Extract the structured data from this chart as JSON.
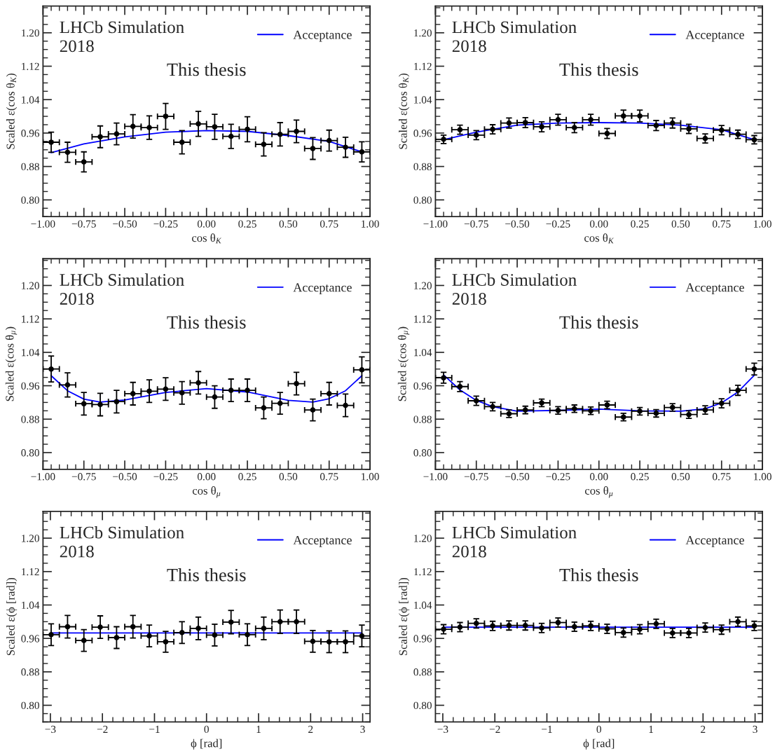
{
  "chart_data": [
    {
      "type": "scatter",
      "xlabel": "cos θ$_{K}$",
      "ylabel": "Scaled ε(cos θ$_{K}$)",
      "annotations": [
        "LHCb Simulation\n2018",
        "This thesis"
      ],
      "legend": "top right",
      "xlim": [
        -1,
        1
      ],
      "ylim": [
        0.76,
        1.264
      ],
      "xticks": [
        {
          "value": -1,
          "label": "−1.00"
        },
        {
          "value": -0.75,
          "label": "−0.75"
        },
        {
          "value": -0.5,
          "label": "−0.50"
        },
        {
          "value": -0.25,
          "label": "−0.25"
        },
        {
          "value": 0,
          "label": "0.00"
        },
        {
          "value": 0.25,
          "label": "0.25"
        },
        {
          "value": 0.5,
          "label": "0.50"
        },
        {
          "value": 0.75,
          "label": "0.75"
        },
        {
          "value": 1,
          "label": "1.00"
        }
      ],
      "yticks": [
        {
          "value": 0.8,
          "label": "0.80"
        },
        {
          "value": 0.88,
          "label": "0.88"
        },
        {
          "value": 0.96,
          "label": "0.96"
        },
        {
          "value": 1.04,
          "label": "1.04"
        },
        {
          "value": 1.12,
          "label": "1.12"
        },
        {
          "value": 1.2,
          "label": "1.20"
        }
      ],
      "series": [
        {
          "type": "scatter",
          "color": "#000000",
          "marker": "circle",
          "x": [
            -0.95,
            -0.85,
            -0.75,
            -0.65,
            -0.55,
            -0.45,
            -0.35,
            -0.25,
            -0.15,
            -0.05,
            0.05,
            0.15,
            0.25,
            0.35,
            0.45,
            0.55,
            0.65,
            0.75,
            0.85,
            0.95
          ],
          "values": [
            0.938,
            0.914,
            0.891,
            0.951,
            0.958,
            0.976,
            0.973,
            1.0,
            0.938,
            0.982,
            0.975,
            0.952,
            0.969,
            0.933,
            0.957,
            0.964,
            0.923,
            0.942,
            0.926,
            0.915
          ],
          "errors": [
            0.024,
            0.024,
            0.024,
            0.026,
            0.026,
            0.028,
            0.028,
            0.031,
            0.028,
            0.03,
            0.03,
            0.029,
            0.03,
            0.028,
            0.028,
            0.027,
            0.026,
            0.025,
            0.024,
            0.024
          ],
          "xerrors": [
            0.05,
            0.05,
            0.05,
            0.05,
            0.05,
            0.05,
            0.05,
            0.05,
            0.05,
            0.05,
            0.05,
            0.05,
            0.05,
            0.05,
            0.05,
            0.05,
            0.05,
            0.05,
            0.05,
            0.05
          ]
        },
        {
          "type": "line",
          "name": "Acceptance",
          "color": "#0000ff",
          "x": [
            -0.95,
            -0.75,
            -0.5,
            -0.25,
            0,
            0.25,
            0.5,
            0.75,
            0.95
          ],
          "values": [
            0.913,
            0.934,
            0.951,
            0.962,
            0.966,
            0.964,
            0.954,
            0.94,
            0.915
          ]
        }
      ]
    },
    {
      "type": "scatter",
      "xlabel": "cos θ$_{K}$",
      "ylabel": "Scaled ε(cos θ$_{K}$)",
      "annotations": [
        "LHCb Simulation\n2018",
        "This thesis"
      ],
      "legend": "top right",
      "xlim": [
        -1,
        1
      ],
      "ylim": [
        0.76,
        1.264
      ],
      "xticks": [
        {
          "value": -1,
          "label": "−1.00"
        },
        {
          "value": -0.75,
          "label": "−0.75"
        },
        {
          "value": -0.5,
          "label": "−0.50"
        },
        {
          "value": -0.25,
          "label": "−0.25"
        },
        {
          "value": 0,
          "label": "0.00"
        },
        {
          "value": 0.25,
          "label": "0.25"
        },
        {
          "value": 0.5,
          "label": "0.50"
        },
        {
          "value": 0.75,
          "label": "0.75"
        },
        {
          "value": 1,
          "label": "1.00"
        }
      ],
      "yticks": [
        {
          "value": 0.8,
          "label": "0.80"
        },
        {
          "value": 0.88,
          "label": "0.88"
        },
        {
          "value": 0.96,
          "label": "0.96"
        },
        {
          "value": 1.04,
          "label": "1.04"
        },
        {
          "value": 1.12,
          "label": "1.12"
        },
        {
          "value": 1.2,
          "label": "1.20"
        }
      ],
      "series": [
        {
          "type": "scatter",
          "color": "#000000",
          "marker": "circle",
          "x": [
            -0.95,
            -0.85,
            -0.75,
            -0.65,
            -0.55,
            -0.45,
            -0.35,
            -0.25,
            -0.15,
            -0.05,
            0.05,
            0.15,
            0.25,
            0.35,
            0.45,
            0.55,
            0.65,
            0.75,
            0.85,
            0.95
          ],
          "values": [
            0.945,
            0.968,
            0.955,
            0.969,
            0.984,
            0.985,
            0.975,
            0.992,
            0.973,
            0.992,
            0.959,
            1.001,
            1.001,
            0.978,
            0.984,
            0.97,
            0.947,
            0.967,
            0.957,
            0.944
          ],
          "errors": [
            0.01,
            0.011,
            0.011,
            0.011,
            0.012,
            0.012,
            0.012,
            0.013,
            0.012,
            0.013,
            0.012,
            0.014,
            0.014,
            0.012,
            0.012,
            0.011,
            0.011,
            0.011,
            0.01,
            0.01
          ],
          "xerrors": [
            0.05,
            0.05,
            0.05,
            0.05,
            0.05,
            0.05,
            0.05,
            0.05,
            0.05,
            0.05,
            0.05,
            0.05,
            0.05,
            0.05,
            0.05,
            0.05,
            0.05,
            0.05,
            0.05,
            0.05
          ]
        },
        {
          "type": "line",
          "name": "Acceptance",
          "color": "#0000ff",
          "x": [
            -0.95,
            -0.75,
            -0.5,
            -0.25,
            0,
            0.25,
            0.5,
            0.75,
            0.95
          ],
          "values": [
            0.944,
            0.962,
            0.979,
            0.984,
            0.985,
            0.984,
            0.979,
            0.968,
            0.944
          ]
        }
      ]
    },
    {
      "type": "scatter",
      "xlabel": "cos θ$_{μ}$",
      "ylabel": "Scaled ε(cos θ$_{μ}$)",
      "annotations": [
        "LHCb Simulation\n2018",
        "This thesis"
      ],
      "legend": "top right",
      "xlim": [
        -1,
        1
      ],
      "ylim": [
        0.76,
        1.264
      ],
      "xticks": [
        {
          "value": -1,
          "label": "−1.00"
        },
        {
          "value": -0.75,
          "label": "−0.75"
        },
        {
          "value": -0.5,
          "label": "−0.50"
        },
        {
          "value": -0.25,
          "label": "−0.25"
        },
        {
          "value": 0,
          "label": "0.00"
        },
        {
          "value": 0.25,
          "label": "0.25"
        },
        {
          "value": 0.5,
          "label": "0.50"
        },
        {
          "value": 0.75,
          "label": "0.75"
        },
        {
          "value": 1,
          "label": "1.00"
        }
      ],
      "yticks": [
        {
          "value": 0.8,
          "label": "0.80"
        },
        {
          "value": 0.88,
          "label": "0.88"
        },
        {
          "value": 0.96,
          "label": "0.96"
        },
        {
          "value": 1.04,
          "label": "1.04"
        },
        {
          "value": 1.12,
          "label": "1.12"
        },
        {
          "value": 1.2,
          "label": "1.20"
        }
      ],
      "series": [
        {
          "type": "scatter",
          "color": "#000000",
          "marker": "circle",
          "x": [
            -0.95,
            -0.85,
            -0.75,
            -0.65,
            -0.55,
            -0.45,
            -0.35,
            -0.25,
            -0.15,
            -0.05,
            0.05,
            0.15,
            0.25,
            0.35,
            0.45,
            0.55,
            0.65,
            0.75,
            0.85,
            0.95
          ],
          "values": [
            1.0,
            0.962,
            0.917,
            0.915,
            0.922,
            0.941,
            0.947,
            0.952,
            0.943,
            0.967,
            0.933,
            0.949,
            0.949,
            0.907,
            0.918,
            0.965,
            0.902,
            0.941,
            0.913,
            0.998
          ],
          "errors": [
            0.031,
            0.029,
            0.027,
            0.027,
            0.027,
            0.027,
            0.027,
            0.027,
            0.027,
            0.027,
            0.027,
            0.027,
            0.027,
            0.026,
            0.026,
            0.027,
            0.026,
            0.027,
            0.027,
            0.031
          ],
          "xerrors": [
            0.05,
            0.05,
            0.05,
            0.05,
            0.05,
            0.05,
            0.05,
            0.05,
            0.05,
            0.05,
            0.05,
            0.05,
            0.05,
            0.05,
            0.05,
            0.05,
            0.05,
            0.05,
            0.05,
            0.05
          ]
        },
        {
          "type": "line",
          "name": "Acceptance",
          "color": "#0000ff",
          "x": [
            -0.95,
            -0.85,
            -0.75,
            -0.65,
            -0.5,
            -0.25,
            0,
            0.25,
            0.5,
            0.65,
            0.75,
            0.85,
            0.95
          ],
          "values": [
            0.984,
            0.948,
            0.928,
            0.921,
            0.926,
            0.944,
            0.953,
            0.945,
            0.925,
            0.921,
            0.929,
            0.948,
            0.984
          ]
        }
      ]
    },
    {
      "type": "scatter",
      "xlabel": "cos θ$_{μ}$",
      "ylabel": "Scaled ε(cos θ$_{μ}$)",
      "annotations": [
        "LHCb Simulation\n2018",
        "This thesis"
      ],
      "legend": "top right",
      "xlim": [
        -1,
        1
      ],
      "ylim": [
        0.76,
        1.264
      ],
      "xticks": [
        {
          "value": -1,
          "label": "−1.00"
        },
        {
          "value": -0.75,
          "label": "−0.75"
        },
        {
          "value": -0.5,
          "label": "−0.50"
        },
        {
          "value": -0.25,
          "label": "−0.25"
        },
        {
          "value": 0,
          "label": "0.00"
        },
        {
          "value": 0.25,
          "label": "0.25"
        },
        {
          "value": 0.5,
          "label": "0.50"
        },
        {
          "value": 0.75,
          "label": "0.75"
        },
        {
          "value": 1,
          "label": "1.00"
        }
      ],
      "yticks": [
        {
          "value": 0.8,
          "label": "0.80"
        },
        {
          "value": 0.88,
          "label": "0.88"
        },
        {
          "value": 0.96,
          "label": "0.96"
        },
        {
          "value": 1.04,
          "label": "1.04"
        },
        {
          "value": 1.12,
          "label": "1.12"
        },
        {
          "value": 1.2,
          "label": "1.20"
        }
      ],
      "series": [
        {
          "type": "scatter",
          "color": "#000000",
          "marker": "circle",
          "x": [
            -0.95,
            -0.85,
            -0.75,
            -0.65,
            -0.55,
            -0.45,
            -0.35,
            -0.25,
            -0.15,
            -0.05,
            0.05,
            0.15,
            0.25,
            0.35,
            0.45,
            0.55,
            0.65,
            0.75,
            0.85,
            0.95
          ],
          "values": [
            0.979,
            0.958,
            0.924,
            0.91,
            0.893,
            0.902,
            0.919,
            0.901,
            0.905,
            0.9,
            0.914,
            0.885,
            0.899,
            0.894,
            0.908,
            0.891,
            0.902,
            0.918,
            0.949,
            1.0
          ],
          "errors": [
            0.013,
            0.012,
            0.011,
            0.01,
            0.009,
            0.009,
            0.009,
            0.009,
            0.009,
            0.009,
            0.009,
            0.009,
            0.009,
            0.009,
            0.009,
            0.009,
            0.01,
            0.011,
            0.012,
            0.014
          ],
          "xerrors": [
            0.05,
            0.05,
            0.05,
            0.05,
            0.05,
            0.05,
            0.05,
            0.05,
            0.05,
            0.05,
            0.05,
            0.05,
            0.05,
            0.05,
            0.05,
            0.05,
            0.05,
            0.05,
            0.05,
            0.05
          ]
        },
        {
          "type": "line",
          "name": "Acceptance",
          "color": "#0000ff",
          "x": [
            -0.95,
            -0.85,
            -0.75,
            -0.65,
            -0.5,
            -0.25,
            0,
            0.25,
            0.5,
            0.65,
            0.75,
            0.85,
            0.95
          ],
          "values": [
            0.986,
            0.95,
            0.925,
            0.91,
            0.899,
            0.901,
            0.904,
            0.9,
            0.899,
            0.905,
            0.919,
            0.945,
            0.985
          ]
        }
      ]
    },
    {
      "type": "scatter",
      "xlabel": "ϕ [rad]",
      "ylabel": "Scaled ε(ϕ [rad])",
      "annotations": [
        "LHCb Simulation\n2018",
        "This thesis"
      ],
      "legend": "top right",
      "xlim": [
        -3.1416,
        3.1416
      ],
      "ylim": [
        0.76,
        1.264
      ],
      "xticks": [
        {
          "value": -3,
          "label": "−3"
        },
        {
          "value": -2,
          "label": "−2"
        },
        {
          "value": -1,
          "label": "−1"
        },
        0,
        1,
        2,
        3
      ],
      "yticks": [
        {
          "value": 0.8,
          "label": "0.80"
        },
        {
          "value": 0.88,
          "label": "0.88"
        },
        {
          "value": 0.96,
          "label": "0.96"
        },
        {
          "value": 1.04,
          "label": "1.04"
        },
        {
          "value": 1.12,
          "label": "1.12"
        },
        {
          "value": 1.2,
          "label": "1.20"
        }
      ],
      "series": [
        {
          "type": "scatter",
          "color": "#000000",
          "marker": "circle",
          "x": [
            -2.985,
            -2.67,
            -2.356,
            -2.042,
            -1.728,
            -1.414,
            -1.1,
            -0.785,
            -0.471,
            -0.157,
            0.157,
            0.471,
            0.785,
            1.1,
            1.414,
            1.728,
            2.042,
            2.356,
            2.67,
            2.985
          ],
          "values": [
            0.969,
            0.988,
            0.955,
            0.987,
            0.962,
            0.988,
            0.966,
            0.952,
            0.974,
            0.984,
            0.968,
            0.999,
            0.969,
            0.984,
            1.0,
            1.0,
            0.953,
            0.952,
            0.952,
            0.966
          ],
          "errors": [
            0.026,
            0.027,
            0.026,
            0.027,
            0.026,
            0.027,
            0.026,
            0.025,
            0.026,
            0.027,
            0.026,
            0.028,
            0.026,
            0.027,
            0.028,
            0.028,
            0.026,
            0.026,
            0.026,
            0.026
          ],
          "xerrors": [
            0.157,
            0.157,
            0.157,
            0.157,
            0.157,
            0.157,
            0.157,
            0.157,
            0.157,
            0.157,
            0.157,
            0.157,
            0.157,
            0.157,
            0.157,
            0.157,
            0.157,
            0.157,
            0.157,
            0.157
          ]
        },
        {
          "type": "line",
          "name": "Acceptance",
          "color": "#0000ff",
          "x": [
            -2.985,
            2.985
          ],
          "values": [
            0.973,
            0.973
          ]
        }
      ]
    },
    {
      "type": "scatter",
      "xlabel": "ϕ [rad]",
      "ylabel": "Scaled ε(ϕ [rad])",
      "annotations": [
        "LHCb Simulation\n2018",
        "This thesis"
      ],
      "legend": "top right",
      "xlim": [
        -3.1416,
        3.1416
      ],
      "ylim": [
        0.76,
        1.264
      ],
      "xticks": [
        {
          "value": -3,
          "label": "−3"
        },
        {
          "value": -2,
          "label": "−2"
        },
        {
          "value": -1,
          "label": "−1"
        },
        0,
        1,
        2,
        3
      ],
      "yticks": [
        {
          "value": 0.8,
          "label": "0.80"
        },
        {
          "value": 0.88,
          "label": "0.88"
        },
        {
          "value": 0.96,
          "label": "0.96"
        },
        {
          "value": 1.04,
          "label": "1.04"
        },
        {
          "value": 1.12,
          "label": "1.12"
        },
        {
          "value": 1.2,
          "label": "1.20"
        }
      ],
      "series": [
        {
          "type": "scatter",
          "color": "#000000",
          "marker": "circle",
          "x": [
            -2.985,
            -2.67,
            -2.356,
            -2.042,
            -1.728,
            -1.414,
            -1.1,
            -0.785,
            -0.471,
            -0.157,
            0.157,
            0.471,
            0.785,
            1.1,
            1.414,
            1.728,
            2.042,
            2.356,
            2.67,
            2.985
          ],
          "values": [
            0.982,
            0.987,
            0.996,
            0.99,
            0.991,
            0.991,
            0.985,
            0.998,
            0.988,
            0.99,
            0.983,
            0.974,
            0.982,
            0.995,
            0.973,
            0.973,
            0.986,
            0.981,
            1.0,
            0.99
          ],
          "errors": [
            0.011,
            0.011,
            0.011,
            0.011,
            0.011,
            0.011,
            0.011,
            0.011,
            0.011,
            0.011,
            0.011,
            0.011,
            0.011,
            0.011,
            0.011,
            0.011,
            0.011,
            0.011,
            0.011,
            0.011
          ],
          "xerrors": [
            0.157,
            0.157,
            0.157,
            0.157,
            0.157,
            0.157,
            0.157,
            0.157,
            0.157,
            0.157,
            0.157,
            0.157,
            0.157,
            0.157,
            0.157,
            0.157,
            0.157,
            0.157,
            0.157,
            0.157
          ]
        },
        {
          "type": "line",
          "name": "Acceptance",
          "color": "#0000ff",
          "x": [
            -2.985,
            2.985
          ],
          "values": [
            0.987,
            0.987
          ]
        }
      ]
    }
  ]
}
